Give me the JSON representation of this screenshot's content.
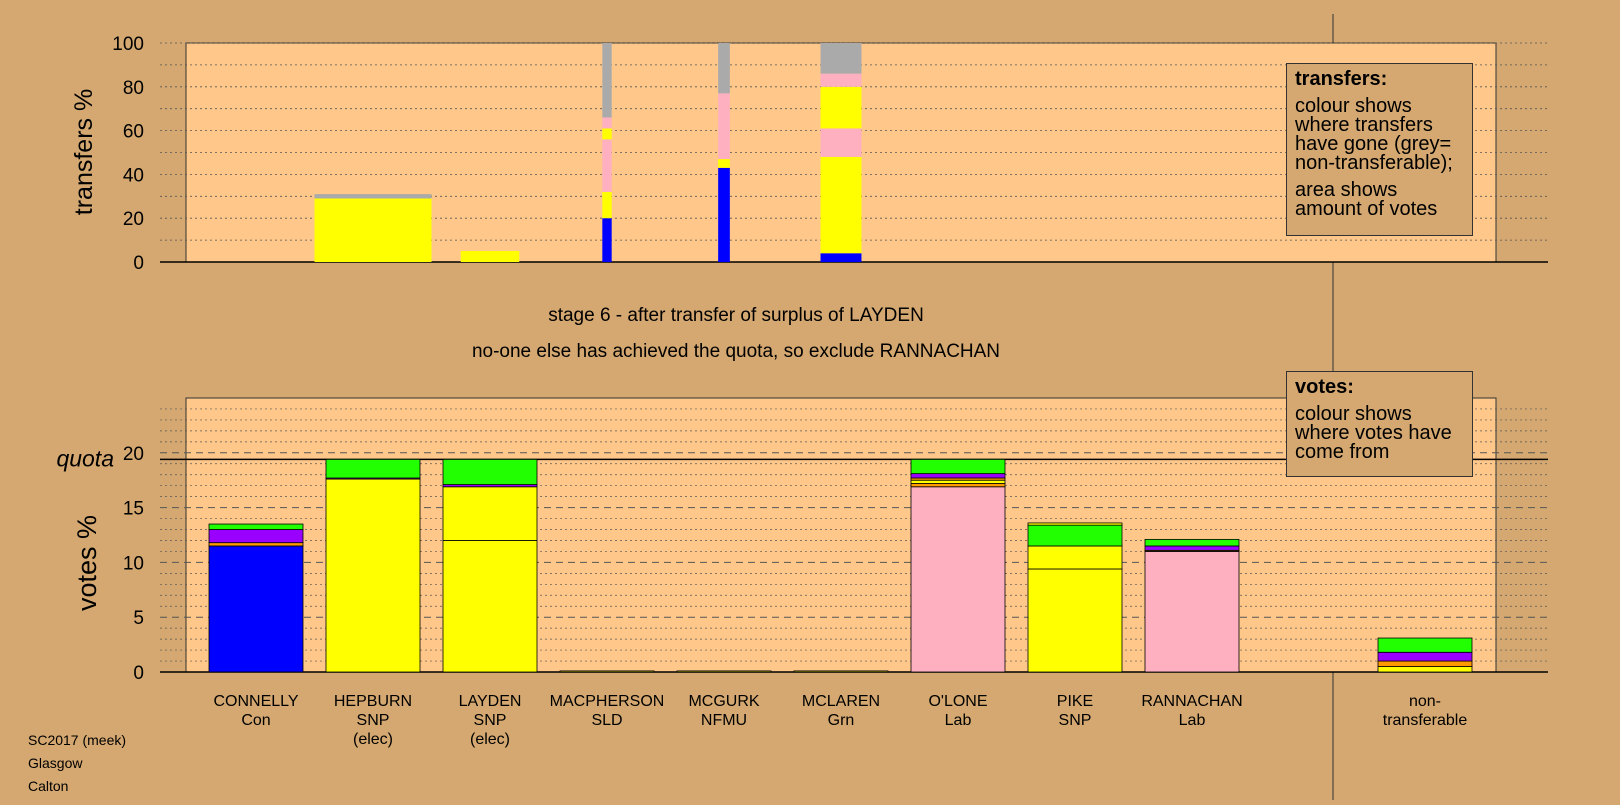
{
  "colors": {
    "background": "#d4a870",
    "panel": "#ffc88a",
    "blue": "#0000ff",
    "orange": "#ff9900",
    "purple": "#9900ff",
    "green": "#22ff00",
    "yellow": "#ffff00",
    "pink": "#ffb0c0",
    "grey": "#aaaaaa"
  },
  "stage_title": "stage 6 - after transfer of surplus of LAYDEN",
  "stage_subtitle": "no-one else has achieved the quota, so exclude RANNACHAN",
  "legends": {
    "transfers": {
      "title": "transfers:",
      "para1": "colour shows where transfers have gone (grey= non-transferable);",
      "para2": "area shows amount of votes"
    },
    "votes": {
      "title": "votes:",
      "para1": "colour shows where votes have come from"
    }
  },
  "credits": [
    "SC2017 (meek)",
    "Glasgow",
    "Calton"
  ],
  "chart_data": [
    {
      "type": "bar",
      "stacked": true,
      "ylabel": "transfers %",
      "ylim": [
        0,
        100
      ],
      "yticks": [
        0,
        20,
        40,
        60,
        80,
        100
      ],
      "bars": [
        {
          "center": 1.0,
          "width": 1.0,
          "segments": [
            {
              "color": "yellow",
              "value": 29
            },
            {
              "color": "grey",
              "value": 2
            }
          ]
        },
        {
          "center": 2.0,
          "width": 0.5,
          "segments": [
            {
              "color": "yellow",
              "value": 5
            }
          ]
        },
        {
          "center": 3.0,
          "width": 0.08,
          "segments": [
            {
              "color": "blue",
              "value": 20
            },
            {
              "color": "yellow",
              "value": 12
            },
            {
              "color": "pink",
              "value": 24
            },
            {
              "color": "yellow",
              "value": 5
            },
            {
              "color": "pink",
              "value": 5
            },
            {
              "color": "grey",
              "value": 34
            }
          ]
        },
        {
          "center": 4.0,
          "width": 0.1,
          "segments": [
            {
              "color": "blue",
              "value": 43
            },
            {
              "color": "yellow",
              "value": 4
            },
            {
              "color": "pink",
              "value": 30
            },
            {
              "color": "grey",
              "value": 23
            }
          ]
        },
        {
          "center": 5.0,
          "width": 0.35,
          "segments": [
            {
              "color": "blue",
              "value": 4
            },
            {
              "color": "yellow",
              "value": 44
            },
            {
              "color": "pink",
              "value": 13
            },
            {
              "color": "yellow",
              "value": 19
            },
            {
              "color": "pink",
              "value": 6
            },
            {
              "color": "grey",
              "value": 14
            }
          ]
        }
      ]
    },
    {
      "type": "bar",
      "stacked": true,
      "ylabel": "votes %",
      "ylim": [
        0,
        25
      ],
      "yticks": [
        0,
        5,
        10,
        15,
        20
      ],
      "quota": 19.4,
      "quota_label": "quota",
      "categories": [
        {
          "name": "CONNELLY",
          "party": "Con",
          "status": ""
        },
        {
          "name": "HEPBURN",
          "party": "SNP",
          "status": "(elec)"
        },
        {
          "name": "LAYDEN",
          "party": "SNP",
          "status": "(elec)"
        },
        {
          "name": "MACPHERSON",
          "party": "SLD",
          "status": ""
        },
        {
          "name": "MCGURK",
          "party": "NFMU",
          "status": ""
        },
        {
          "name": "MCLAREN",
          "party": "Grn",
          "status": ""
        },
        {
          "name": "O'LONE",
          "party": "Lab",
          "status": ""
        },
        {
          "name": "PIKE",
          "party": "SNP",
          "status": ""
        },
        {
          "name": "RANNACHAN",
          "party": "Lab",
          "status": ""
        },
        {
          "name": "non-",
          "party": "transferable",
          "status": ""
        }
      ],
      "series_stacks": [
        [
          {
            "color": "blue",
            "value": 11.5
          },
          {
            "color": "orange",
            "value": 0.3
          },
          {
            "color": "purple",
            "value": 1.2
          },
          {
            "color": "green",
            "value": 0.5
          }
        ],
        [
          {
            "color": "yellow",
            "value": 17.6
          },
          {
            "color": "purple",
            "value": 0.1
          },
          {
            "color": "green",
            "value": 1.7
          }
        ],
        [
          {
            "color": "yellow",
            "value": 12.0
          },
          {
            "color": "yellow",
            "value": 4.9
          },
          {
            "color": "purple",
            "value": 0.2
          },
          {
            "color": "green",
            "value": 2.3
          }
        ],
        [
          {
            "color": "yellow",
            "value": 0.1
          }
        ],
        [
          {
            "color": "yellow",
            "value": 0.1
          }
        ],
        [
          {
            "color": "yellow",
            "value": 0.1
          }
        ],
        [
          {
            "color": "pink",
            "value": 16.9
          },
          {
            "color": "orange",
            "value": 0.3
          },
          {
            "color": "yellow",
            "value": 0.3
          },
          {
            "color": "orange",
            "value": 0.2
          },
          {
            "color": "purple",
            "value": 0.4
          },
          {
            "color": "green",
            "value": 1.3
          }
        ],
        [
          {
            "color": "yellow",
            "value": 9.4
          },
          {
            "color": "yellow",
            "value": 2.1
          },
          {
            "color": "green",
            "value": 1.9
          },
          {
            "color": "yellow",
            "value": 0.2
          }
        ],
        [
          {
            "color": "pink",
            "value": 11.0
          },
          {
            "color": "orange",
            "value": 0.1
          },
          {
            "color": "purple",
            "value": 0.4
          },
          {
            "color": "green",
            "value": 0.6
          }
        ],
        [
          {
            "color": "yellow",
            "value": 0.5
          },
          {
            "color": "orange",
            "value": 0.5
          },
          {
            "color": "purple",
            "value": 0.8
          },
          {
            "color": "green",
            "value": 1.3
          }
        ]
      ]
    }
  ]
}
